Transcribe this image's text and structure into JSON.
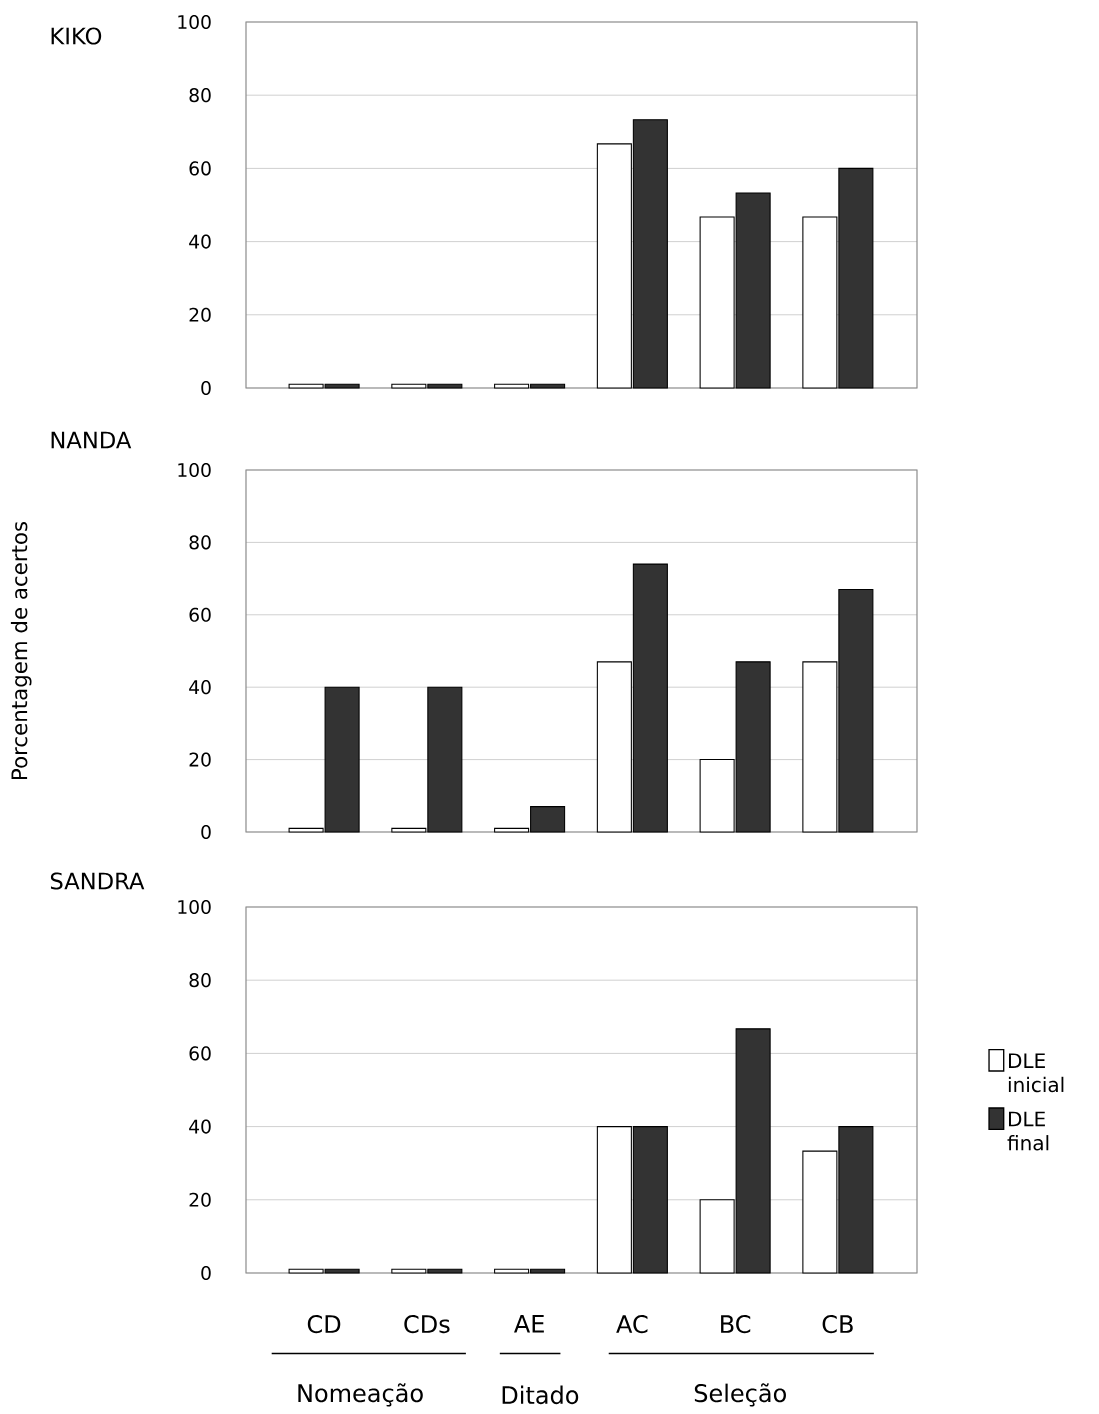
{
  "chart_data": [
    {
      "type": "bar",
      "title": "KIKO",
      "categories": [
        null,
        null,
        null,
        null,
        null,
        null
      ],
      "tick_labels": "y",
      "grid": "y",
      "ylim": [
        0,
        100
      ],
      "yticks": [
        0,
        20,
        40,
        60,
        80,
        100
      ],
      "series": [
        {
          "color": "#ffffff",
          "values": [
            1,
            1,
            1,
            66.7,
            46.7,
            46.7
          ]
        },
        {
          "color": "#333333",
          "values": [
            1,
            1,
            1,
            73.3,
            53.3,
            60
          ]
        }
      ]
    },
    {
      "type": "bar",
      "title": "NANDA",
      "ylabel": "Porcentagem de acertos",
      "categories": [
        null,
        null,
        null,
        null,
        null,
        null
      ],
      "tick_labels": "y",
      "grid": "y",
      "ylim": [
        0,
        100
      ],
      "yticks": [
        0,
        20,
        40,
        60,
        80,
        100
      ],
      "series": [
        {
          "color": "#ffffff",
          "values": [
            1,
            1,
            1,
            47,
            20,
            47
          ]
        },
        {
          "color": "#333333",
          "values": [
            40,
            40,
            7,
            74,
            47,
            67
          ]
        }
      ]
    },
    {
      "type": "bar",
      "title": "SANDRA",
      "categories": [
        "CD",
        "CDs",
        "AE",
        "AC",
        "BC",
        "CB"
      ],
      "grid": "y",
      "ylim": [
        0,
        100
      ],
      "yticks": [
        0,
        20,
        40,
        60,
        80,
        100
      ],
      "legend": "right",
      "annotations": [
        "Nomeação",
        "Ditado",
        "Seleção"
      ],
      "series": [
        {
          "name": "DLE inicial",
          "color": "#ffffff",
          "values": [
            1,
            1,
            1,
            40,
            20,
            33.3
          ]
        },
        {
          "name": "DLE final",
          "color": "#333333",
          "values": [
            1,
            1,
            1,
            40,
            66.7,
            40
          ]
        }
      ]
    }
  ]
}
